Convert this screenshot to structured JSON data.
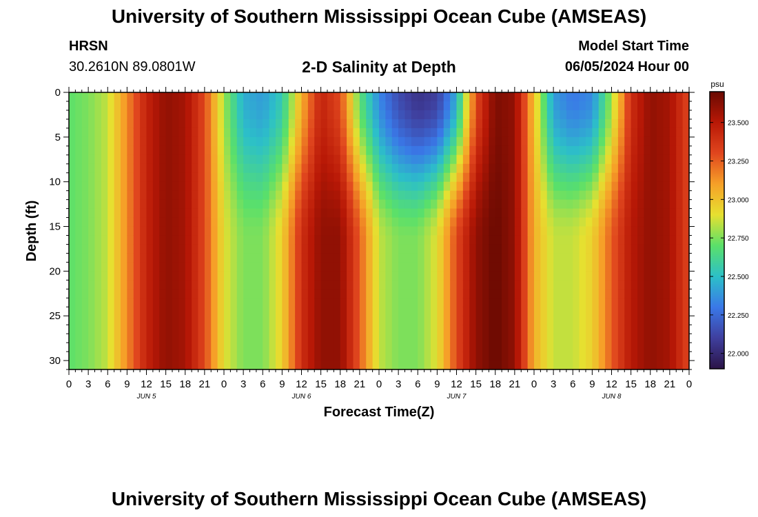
{
  "page": {
    "title_top": "University of Southern Mississippi Ocean Cube (AMSEAS)",
    "title_bottom": "University of Southern Mississippi Ocean Cube (AMSEAS)",
    "station_name": "HRSN",
    "station_coords": "30.2610N  89.0801W",
    "chart_title": "2-D Salinity at Depth",
    "model_start_label": "Model Start Time",
    "model_start_value": "06/05/2024 Hour 00"
  },
  "colors": {
    "scale": [
      "#2b1447",
      "#3f3f9e",
      "#3a78e8",
      "#2cc0c8",
      "#5ae06a",
      "#e6e030",
      "#f6a028",
      "#e0461e",
      "#b81806",
      "#6a0a02"
    ]
  },
  "chart_data": {
    "type": "heatmap",
    "title": "2-D Salinity at Depth",
    "xlabel": "Forecast Time(Z)",
    "ylabel": "Depth (ft)",
    "x_ticks": [
      "0",
      "3",
      "6",
      "9",
      "12",
      "15",
      "18",
      "21",
      "0",
      "3",
      "6",
      "9",
      "12",
      "15",
      "18",
      "21",
      "0",
      "3",
      "6",
      "9",
      "12",
      "15",
      "18",
      "21",
      "0",
      "3",
      "6",
      "9",
      "12",
      "15",
      "18",
      "21",
      "0"
    ],
    "x_range_hours": [
      0,
      96
    ],
    "day_labels": [
      {
        "hour": 12,
        "label": "JUN 5"
      },
      {
        "hour": 36,
        "label": "JUN 6"
      },
      {
        "hour": 60,
        "label": "JUN 7"
      },
      {
        "hour": 84,
        "label": "JUN 8"
      }
    ],
    "y_ticks": [
      0,
      5,
      10,
      15,
      20,
      25,
      30
    ],
    "ylim": [
      0,
      31
    ],
    "colorbar": {
      "unit": "psu",
      "range": [
        21.9,
        23.7
      ],
      "ticks": [
        "23.500",
        "23.250",
        "23.000",
        "22.750",
        "22.500",
        "22.250",
        "22.000"
      ]
    },
    "surface_salinity": [
      {
        "hour": 0,
        "value": 22.7
      },
      {
        "hour": 3,
        "value": 22.75
      },
      {
        "hour": 6,
        "value": 22.85
      },
      {
        "hour": 9,
        "value": 23.15
      },
      {
        "hour": 12,
        "value": 23.45
      },
      {
        "hour": 15,
        "value": 23.6
      },
      {
        "hour": 18,
        "value": 23.55
      },
      {
        "hour": 21,
        "value": 23.3
      },
      {
        "hour": 24,
        "value": 22.8
      },
      {
        "hour": 27,
        "value": 22.45
      },
      {
        "hour": 30,
        "value": 22.4
      },
      {
        "hour": 33,
        "value": 22.55
      },
      {
        "hour": 36,
        "value": 23.05
      },
      {
        "hour": 39,
        "value": 23.45
      },
      {
        "hour": 42,
        "value": 23.3
      },
      {
        "hour": 45,
        "value": 22.7
      },
      {
        "hour": 48,
        "value": 22.35
      },
      {
        "hour": 51,
        "value": 22.15
      },
      {
        "hour": 54,
        "value": 22.05
      },
      {
        "hour": 57,
        "value": 22.1
      },
      {
        "hour": 60,
        "value": 22.45
      },
      {
        "hour": 63,
        "value": 23.3
      },
      {
        "hour": 66,
        "value": 23.65
      },
      {
        "hour": 69,
        "value": 23.6
      },
      {
        "hour": 72,
        "value": 23.0
      },
      {
        "hour": 75,
        "value": 22.4
      },
      {
        "hour": 78,
        "value": 22.3
      },
      {
        "hour": 81,
        "value": 22.35
      },
      {
        "hour": 84,
        "value": 22.8
      },
      {
        "hour": 87,
        "value": 23.4
      },
      {
        "hour": 90,
        "value": 23.6
      },
      {
        "hour": 93,
        "value": 23.55
      },
      {
        "hour": 96,
        "value": 23.3
      }
    ],
    "bottom_salinity": [
      {
        "hour": 0,
        "value": 22.7
      },
      {
        "hour": 3,
        "value": 22.75
      },
      {
        "hour": 6,
        "value": 22.85
      },
      {
        "hour": 9,
        "value": 23.15
      },
      {
        "hour": 12,
        "value": 23.45
      },
      {
        "hour": 15,
        "value": 23.6
      },
      {
        "hour": 18,
        "value": 23.55
      },
      {
        "hour": 21,
        "value": 23.3
      },
      {
        "hour": 24,
        "value": 22.9
      },
      {
        "hour": 27,
        "value": 22.75
      },
      {
        "hour": 30,
        "value": 22.75
      },
      {
        "hour": 33,
        "value": 22.95
      },
      {
        "hour": 36,
        "value": 23.4
      },
      {
        "hour": 39,
        "value": 23.6
      },
      {
        "hour": 42,
        "value": 23.6
      },
      {
        "hour": 45,
        "value": 23.25
      },
      {
        "hour": 48,
        "value": 22.85
      },
      {
        "hour": 51,
        "value": 22.75
      },
      {
        "hour": 54,
        "value": 22.75
      },
      {
        "hour": 57,
        "value": 22.9
      },
      {
        "hour": 60,
        "value": 23.3
      },
      {
        "hour": 63,
        "value": 23.6
      },
      {
        "hour": 66,
        "value": 23.7
      },
      {
        "hour": 69,
        "value": 23.6
      },
      {
        "hour": 72,
        "value": 23.05
      },
      {
        "hour": 75,
        "value": 22.85
      },
      {
        "hour": 78,
        "value": 22.85
      },
      {
        "hour": 81,
        "value": 22.95
      },
      {
        "hour": 84,
        "value": 23.25
      },
      {
        "hour": 87,
        "value": 23.5
      },
      {
        "hour": 90,
        "value": 23.6
      },
      {
        "hour": 93,
        "value": 23.55
      },
      {
        "hour": 96,
        "value": 23.3
      }
    ]
  }
}
